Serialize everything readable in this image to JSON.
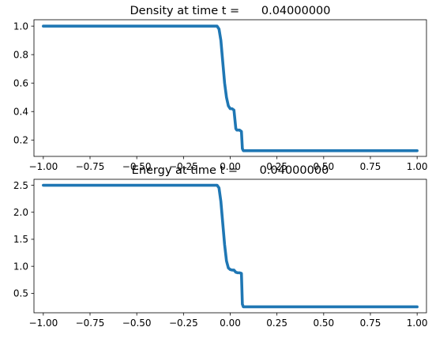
{
  "chart_data": [
    {
      "type": "line",
      "title": "Density at time t =      0.04000000",
      "xlabel": "",
      "ylabel": "",
      "xlim": [
        -1.05,
        1.05
      ],
      "ylim": [
        0.085,
        1.045
      ],
      "xticks": [
        -1.0,
        -0.75,
        -0.5,
        -0.25,
        0.0,
        0.25,
        0.5,
        0.75,
        1.0
      ],
      "xtick_labels": [
        "−1.00",
        "−0.75",
        "−0.50",
        "−0.25",
        "0.00",
        "0.25",
        "0.50",
        "0.75",
        "1.00"
      ],
      "yticks": [
        0.2,
        0.4,
        0.6,
        0.8,
        1.0
      ],
      "ytick_labels": [
        "0.2",
        "0.4",
        "0.6",
        "0.8",
        "1.0"
      ],
      "grid": false,
      "color": "#1f77b4",
      "series": [
        {
          "name": "",
          "x": [
            -1.0,
            -0.07,
            -0.06,
            -0.05,
            -0.04,
            -0.03,
            -0.02,
            -0.01,
            0.0,
            0.01,
            0.02,
            0.03,
            0.035,
            0.04,
            0.05,
            0.06,
            0.065,
            0.07,
            0.08,
            1.0
          ],
          "y": [
            1.0,
            1.0,
            0.98,
            0.9,
            0.75,
            0.6,
            0.5,
            0.44,
            0.42,
            0.42,
            0.41,
            0.28,
            0.27,
            0.27,
            0.27,
            0.26,
            0.14,
            0.125,
            0.125,
            0.125
          ]
        }
      ]
    },
    {
      "type": "line",
      "title": "Energy at time t =      0.04000000",
      "xlabel": "",
      "ylabel": "",
      "xlim": [
        -1.05,
        1.05
      ],
      "ylim": [
        0.14,
        2.61
      ],
      "xticks": [
        -1.0,
        -0.75,
        -0.5,
        -0.25,
        0.0,
        0.25,
        0.5,
        0.75,
        1.0
      ],
      "xtick_labels": [
        "−1.00",
        "−0.75",
        "−0.50",
        "−0.25",
        "0.00",
        "0.25",
        "0.50",
        "0.75",
        "1.00"
      ],
      "yticks": [
        0.5,
        1.0,
        1.5,
        2.0,
        2.5
      ],
      "ytick_labels": [
        "0.5",
        "1.0",
        "1.5",
        "2.0",
        "2.5"
      ],
      "grid": false,
      "color": "#1f77b4",
      "series": [
        {
          "name": "",
          "x": [
            -1.0,
            -0.07,
            -0.06,
            -0.05,
            -0.04,
            -0.03,
            -0.02,
            -0.01,
            0.0,
            0.01,
            0.02,
            0.03,
            0.04,
            0.05,
            0.06,
            0.065,
            0.07,
            0.08,
            1.0
          ],
          "y": [
            2.5,
            2.5,
            2.45,
            2.2,
            1.8,
            1.4,
            1.1,
            0.97,
            0.94,
            0.93,
            0.93,
            0.89,
            0.88,
            0.88,
            0.87,
            0.3,
            0.25,
            0.25,
            0.25
          ]
        }
      ]
    }
  ]
}
